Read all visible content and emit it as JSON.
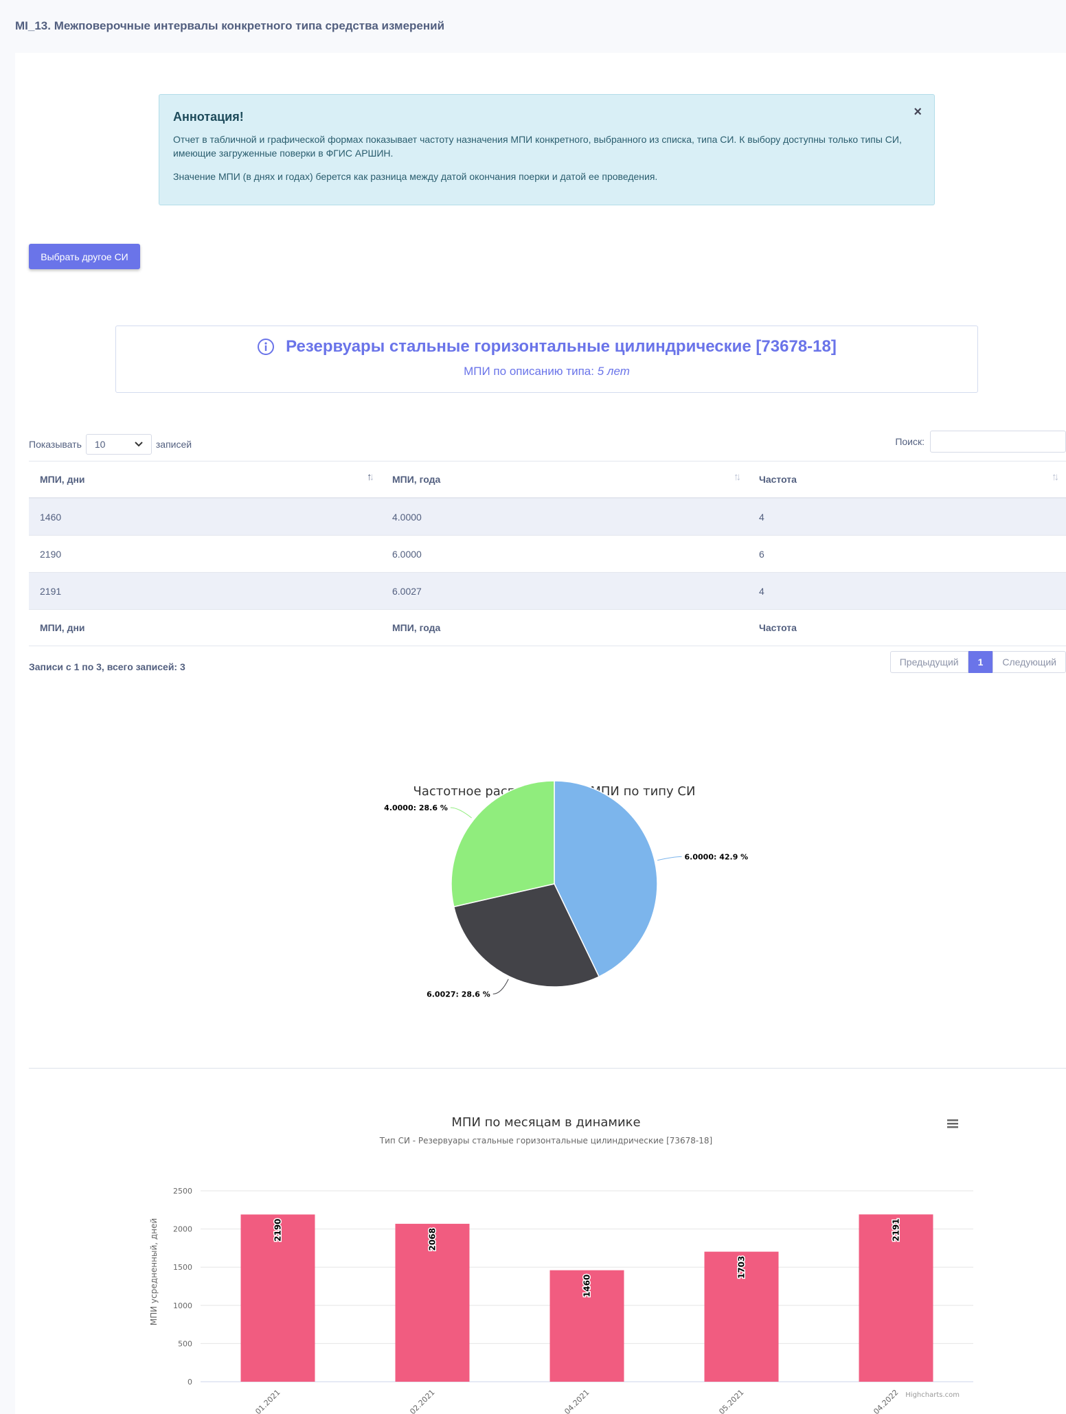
{
  "page": {
    "title": "MI_13. Межповерочные интервалы конкретного типа средства измерений"
  },
  "annotation": {
    "title": "Аннотация!",
    "text1": "Отчет в табличной и графической формах показывает частоту назначения МПИ конкретного, выбранного из списка, типа СИ. К выбору доступны только типы СИ, имеющие загруженные поверки в ФГИС АРШИН.",
    "text2": "Значение МПИ (в днях и годах) берется как разница между датой окончания поерки и датой ее проведения.",
    "close": "×"
  },
  "select_button": "Выбрать другое СИ",
  "instrument": {
    "title": "Резервуары стальные горизонтальные цилиндрические [73678-18]",
    "mpi_label": "МПИ по описанию типа:",
    "mpi_value": "5 лет"
  },
  "table_controls": {
    "show_label": "Показывать",
    "length_value": "10",
    "records_label": "записей",
    "search_label": "Поиск:"
  },
  "table": {
    "columns": [
      "МПИ, дни",
      "МПИ, года",
      "Частота"
    ],
    "rows": [
      [
        "1460",
        "4.0000",
        "4"
      ],
      [
        "2190",
        "6.0000",
        "6"
      ],
      [
        "2191",
        "6.0027",
        "4"
      ]
    ],
    "info": "Записи с 1 по 3, всего записей: 3",
    "pager": {
      "prev": "Предыдущий",
      "page": "1",
      "next": "Следующий"
    }
  },
  "chart_data": [
    {
      "type": "pie",
      "title": "Частотное распределение МПИ по типу СИ",
      "slices": [
        {
          "name": "6.0000",
          "value": 42.9,
          "label": "6.0000: 42.9 %",
          "color": "#7cb5ec"
        },
        {
          "name": "6.0027",
          "value": 28.6,
          "label": "6.0027: 28.6 %",
          "color": "#434348"
        },
        {
          "name": "4.0000",
          "value": 28.6,
          "label": "4.0000: 28.6 %",
          "color": "#90ed7d"
        }
      ]
    },
    {
      "type": "bar",
      "title": "МПИ по месяцам в динамике",
      "subtitle": "Тип СИ - Резервуары стальные горизонтальные цилиндрические [73678-18]",
      "ylabel": "МПИ усредненный, дней",
      "ylim": [
        0,
        2500
      ],
      "yticks": [
        0,
        500,
        1000,
        1500,
        2000,
        2500
      ],
      "categories": [
        "01.2021",
        "02.2021",
        "04.2021",
        "05.2021",
        "04.2022"
      ],
      "values": [
        2190,
        2068,
        1460,
        1703,
        2191
      ],
      "color": "#f15c80",
      "credits": "Highcharts.com"
    }
  ]
}
